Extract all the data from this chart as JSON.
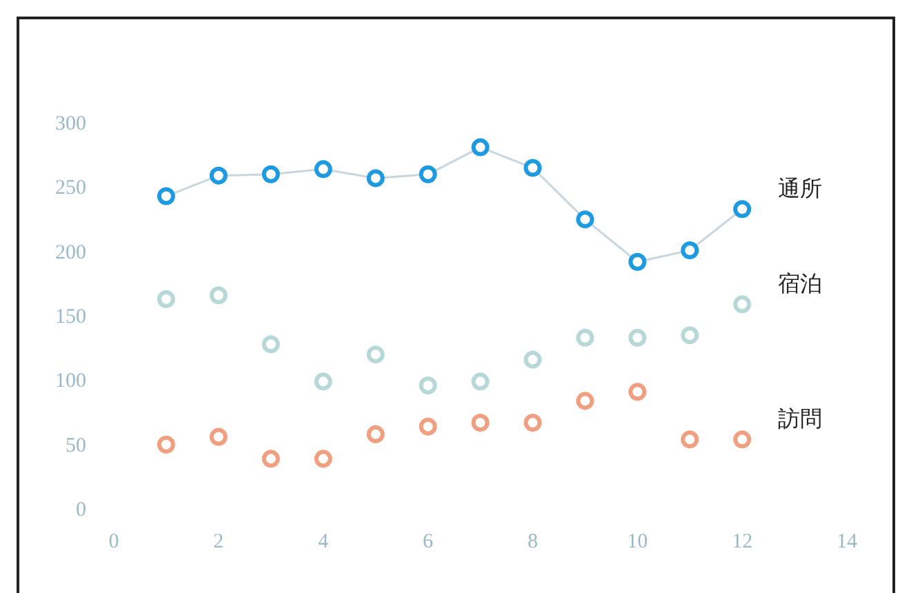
{
  "chart_data": {
    "type": "scatter",
    "x": [
      1,
      2,
      3,
      4,
      5,
      6,
      7,
      8,
      9,
      10,
      11,
      12
    ],
    "series": [
      {
        "name": "通所",
        "type": "line",
        "color": "#1e9be0",
        "values": [
          244,
          260,
          261,
          265,
          258,
          261,
          282,
          266,
          226,
          193,
          202,
          234
        ]
      },
      {
        "name": "宿泊",
        "type": "scatter",
        "color": "#b8d8d8",
        "values": [
          164,
          167,
          129,
          100,
          121,
          97,
          100,
          117,
          134,
          134,
          136,
          160
        ]
      },
      {
        "name": "訪問",
        "type": "scatter",
        "color": "#f0a080",
        "values": [
          51,
          57,
          40,
          40,
          59,
          65,
          68,
          68,
          85,
          92,
          55,
          55
        ]
      }
    ],
    "xlim": [
      0,
      14
    ],
    "xticks": [
      0,
      2,
      4,
      6,
      8,
      10,
      12,
      14
    ],
    "ylim": [
      0,
      300
    ],
    "yticks": [
      0,
      50,
      100,
      150,
      200,
      250,
      300
    ],
    "marker": "circle",
    "grid": false,
    "legend": false
  }
}
